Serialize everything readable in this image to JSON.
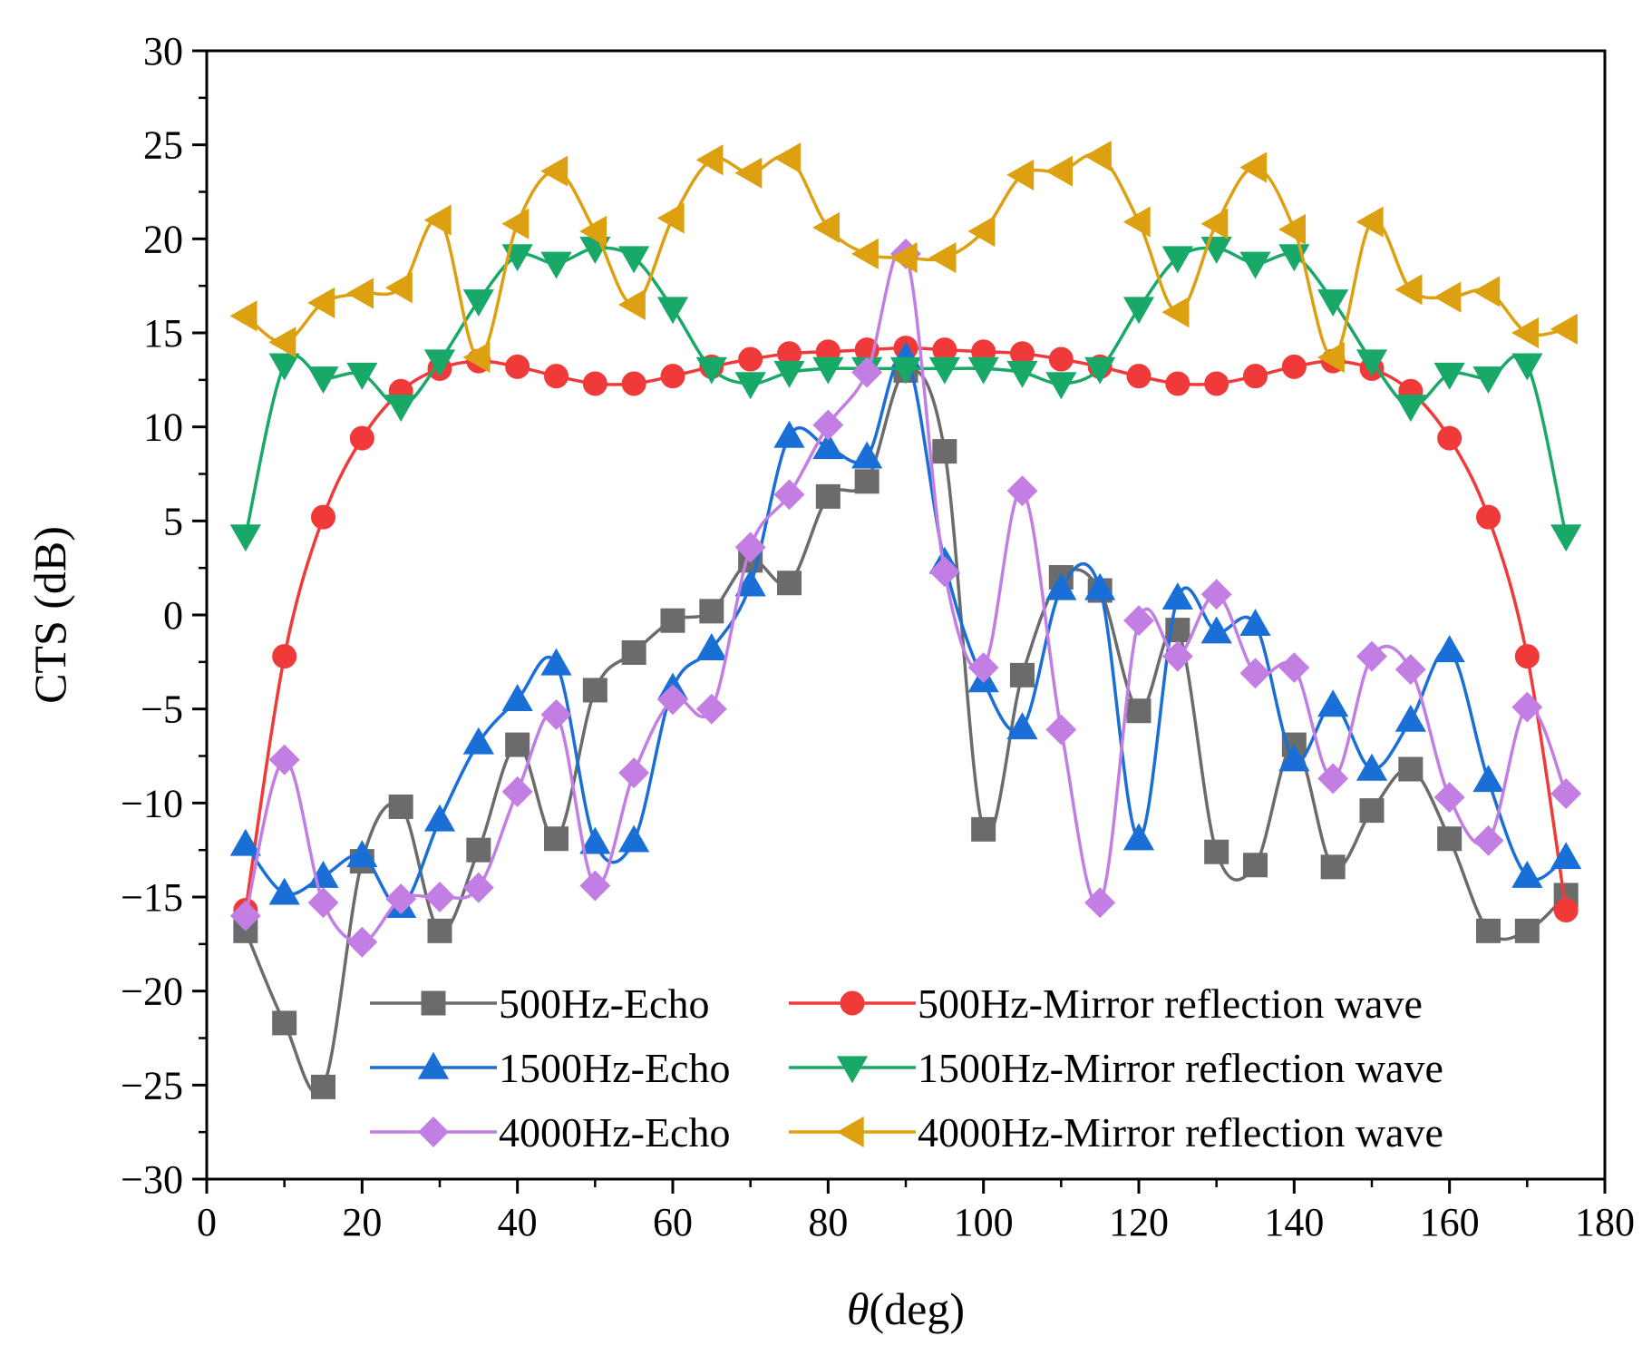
{
  "chart_data": {
    "type": "line",
    "title": "",
    "xlabel_symbol": "θ",
    "xlabel_unit": "(deg)",
    "ylabel": "CTS (dB)",
    "xlim": [
      0,
      180
    ],
    "ylim": [
      -30,
      30
    ],
    "xticks": [
      0,
      20,
      40,
      60,
      80,
      100,
      120,
      140,
      160,
      180
    ],
    "xtick_labels": [
      "0",
      "20",
      "40",
      "60",
      "80",
      "100",
      "120",
      "140",
      "160",
      "180"
    ],
    "yticks": [
      -30,
      -25,
      -20,
      -15,
      -10,
      -5,
      0,
      5,
      10,
      15,
      20,
      25,
      30
    ],
    "ytick_labels": [
      "−30",
      "−25",
      "−20",
      "−15",
      "−10",
      "−5",
      "0",
      "5",
      "10",
      "15",
      "20",
      "25",
      "30"
    ],
    "grid": false,
    "legend_position": "bottom-center",
    "x": [
      5,
      10,
      15,
      20,
      25,
      30,
      35,
      40,
      45,
      50,
      55,
      60,
      65,
      70,
      75,
      80,
      85,
      90,
      95,
      100,
      105,
      110,
      115,
      120,
      125,
      130,
      135,
      140,
      145,
      150,
      155,
      160,
      165,
      170,
      175
    ],
    "series": [
      {
        "name": "500Hz-Echo",
        "color": "#6b6b6b",
        "marker": "square",
        "values": [
          -16.8,
          -21.7,
          -25.1,
          -13.1,
          -10.2,
          -16.8,
          -12.5,
          -6.9,
          -11.9,
          -4.0,
          -2.0,
          -0.3,
          0.2,
          2.9,
          1.7,
          6.3,
          7.1,
          13.0,
          8.7,
          -11.4,
          -3.2,
          2.0,
          1.3,
          -5.1,
          -0.8,
          -12.6,
          -13.3,
          -6.9,
          -13.4,
          -10.4,
          -8.2,
          -11.9,
          -16.8,
          -16.8,
          -14.9
        ]
      },
      {
        "name": "500Hz-Mirror reflection wave",
        "color": "#f03a3a",
        "marker": "circle",
        "values": [
          -15.7,
          -2.2,
          5.2,
          9.4,
          11.9,
          13.1,
          13.5,
          13.2,
          12.7,
          12.3,
          12.3,
          12.7,
          13.2,
          13.6,
          13.9,
          14.0,
          14.1,
          14.2,
          14.1,
          14.0,
          13.9,
          13.6,
          13.2,
          12.7,
          12.3,
          12.3,
          12.7,
          13.2,
          13.5,
          13.1,
          11.9,
          9.4,
          5.2,
          -2.2,
          -15.7
        ]
      },
      {
        "name": "1500Hz-Echo",
        "color": "#1a6fd6",
        "marker": "triangle-up",
        "values": [
          -12.2,
          -14.8,
          -13.9,
          -12.8,
          -15.5,
          -10.9,
          -6.8,
          -4.5,
          -2.6,
          -12.1,
          -12.0,
          -3.9,
          -1.8,
          1.6,
          9.5,
          8.9,
          8.4,
          13.7,
          2.8,
          -3.5,
          -6.0,
          1.4,
          1.4,
          -11.9,
          0.9,
          -0.9,
          -0.5,
          -7.7,
          -4.8,
          -8.2,
          -5.6,
          -1.9,
          -8.8,
          -13.9,
          -12.9
        ]
      },
      {
        "name": "1500Hz-Mirror reflection wave",
        "color": "#18a868",
        "marker": "triangle-down",
        "values": [
          4.2,
          13.3,
          12.6,
          12.8,
          11.1,
          13.5,
          16.7,
          19.1,
          18.7,
          19.5,
          19.0,
          16.3,
          13.1,
          12.3,
          12.9,
          13.1,
          13.1,
          13.1,
          13.1,
          13.1,
          12.9,
          12.3,
          13.1,
          16.3,
          19.0,
          19.5,
          18.7,
          19.1,
          16.7,
          13.5,
          11.1,
          12.8,
          12.6,
          13.3,
          4.2
        ]
      },
      {
        "name": "4000Hz-Echo",
        "color": "#c27ee2",
        "marker": "diamond",
        "values": [
          -16.0,
          -7.7,
          -15.3,
          -17.4,
          -15.1,
          -15.0,
          -14.5,
          -9.4,
          -5.3,
          -14.4,
          -8.4,
          -4.5,
          -5.0,
          3.6,
          6.4,
          10.1,
          12.9,
          19.2,
          2.3,
          -2.8,
          6.6,
          -6.1,
          -15.3,
          -0.3,
          -2.2,
          1.1,
          -3.1,
          -2.8,
          -8.7,
          -2.2,
          -2.9,
          -9.7,
          -12.0,
          -4.9,
          -9.5
        ]
      },
      {
        "name": "4000Hz-Mirror reflection wave",
        "color": "#dca010",
        "marker": "triangle-left",
        "values": [
          15.9,
          14.5,
          16.6,
          17.1,
          17.4,
          21.0,
          13.7,
          20.8,
          23.6,
          20.4,
          16.5,
          21.1,
          24.2,
          23.5,
          24.3,
          20.6,
          19.2,
          19.0,
          19.0,
          20.4,
          23.4,
          23.6,
          24.4,
          20.9,
          16.1,
          20.8,
          23.8,
          20.5,
          13.7,
          20.9,
          17.3,
          16.9,
          17.2,
          15.0,
          15.2
        ]
      }
    ]
  }
}
